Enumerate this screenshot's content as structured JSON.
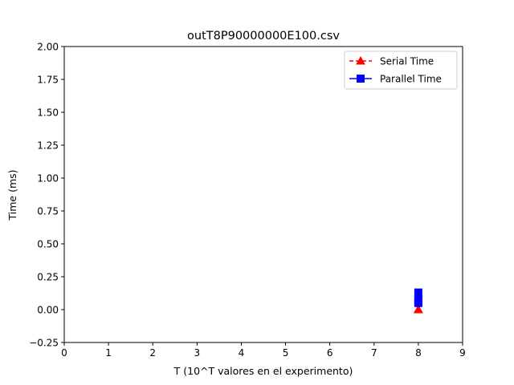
{
  "chart_data": {
    "type": "line",
    "title": "outT8P90000000E100.csv",
    "xlabel": "T (10^T valores en el experimento)",
    "ylabel": "Time (ms)",
    "xlim": [
      0,
      9
    ],
    "ylim": [
      -0.25,
      2.0
    ],
    "x_ticks": [
      "0",
      "1",
      "2",
      "3",
      "4",
      "5",
      "6",
      "7",
      "8",
      "9"
    ],
    "y_ticks": [
      "−0.25",
      "0.00",
      "0.25",
      "0.50",
      "0.75",
      "1.00",
      "1.25",
      "1.50",
      "1.75",
      "2.00"
    ],
    "grid": false,
    "legend_position": "top-right",
    "series": [
      {
        "name": "Serial Time",
        "color": "#ff0000",
        "line_style": "dashed",
        "marker": "triangle",
        "x": [
          8,
          8,
          8
        ],
        "y": [
          0.0,
          0.0,
          0.0
        ]
      },
      {
        "name": "Parallel Time",
        "color": "#0000ff",
        "line_style": "solid",
        "marker": "square",
        "x": [
          8,
          8,
          8,
          8
        ],
        "y": [
          0.13,
          0.08,
          0.06,
          0.05
        ]
      }
    ]
  }
}
